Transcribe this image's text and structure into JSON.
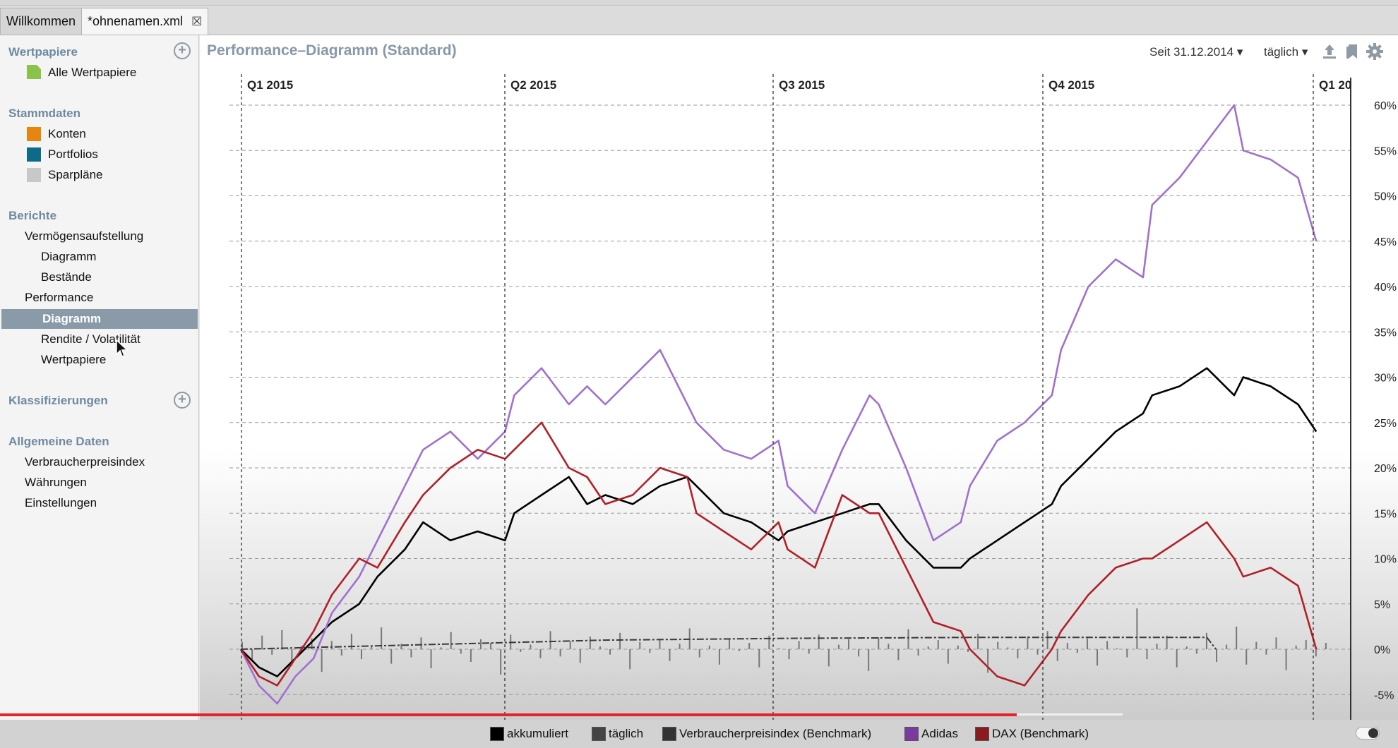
{
  "tabs": [
    {
      "label": "Willkommen"
    },
    {
      "label": "*ohnenamen.xml"
    }
  ],
  "sidebar": {
    "sections": {
      "wertpapiere": {
        "title": "Wertpapiere",
        "items": [
          "Alle Wertpapiere"
        ]
      },
      "stammdaten": {
        "title": "Stammdaten",
        "items": [
          "Konten",
          "Portfolios",
          "Sparpläne"
        ]
      },
      "berichte": {
        "title": "Berichte",
        "items": [
          "Vermögensaufstellung",
          "Diagramm",
          "Bestände",
          "Performance",
          "Diagramm",
          "Rendite / Volatilität",
          "Wertpapiere"
        ]
      },
      "klassifizierungen": {
        "title": "Klassifizierungen"
      },
      "allgemeine": {
        "title": "Allgemeine Daten",
        "items": [
          "Verbraucherpreisindex",
          "Währungen",
          "Einstellungen"
        ]
      }
    },
    "colors": {
      "konten": "#e8850c",
      "portfolios": "#0e6a86",
      "sparplaene": "#c8c8c8",
      "alle": "#8bc34a"
    }
  },
  "header": {
    "title": "Performance–Diagramm (Standard)",
    "since": "Seit 31.12.2014",
    "interval": "täglich"
  },
  "chart_data": {
    "type": "line",
    "x_quarter_labels": [
      "Q1 2015",
      "Q2 2015",
      "Q3 2015",
      "Q4 2015",
      "Q1 20"
    ],
    "y_tick_labels": [
      "60%",
      "55%",
      "50%",
      "45%",
      "40%",
      "35%",
      "30%",
      "25%",
      "20%",
      "15%",
      "10%",
      "5%",
      "0%",
      "-5%"
    ],
    "ylim": [
      -7,
      62
    ],
    "x_months": [
      0,
      12
    ],
    "grid": true,
    "legend_position": "bottom",
    "series": [
      {
        "name": "akkumuliert",
        "color": "#000000",
        "points": [
          [
            0,
            0
          ],
          [
            0.2,
            -2
          ],
          [
            0.4,
            -3
          ],
          [
            0.6,
            -1
          ],
          [
            0.8,
            1
          ],
          [
            1.0,
            3
          ],
          [
            1.3,
            5
          ],
          [
            1.5,
            8
          ],
          [
            1.8,
            11
          ],
          [
            2.0,
            14
          ],
          [
            2.3,
            12
          ],
          [
            2.6,
            13
          ],
          [
            2.9,
            12
          ],
          [
            3.0,
            15
          ],
          [
            3.3,
            17
          ],
          [
            3.6,
            19
          ],
          [
            3.8,
            16
          ],
          [
            4.0,
            17
          ],
          [
            4.3,
            16
          ],
          [
            4.6,
            18
          ],
          [
            4.9,
            19
          ],
          [
            5.0,
            18
          ],
          [
            5.3,
            15
          ],
          [
            5.6,
            14
          ],
          [
            5.9,
            12
          ],
          [
            6.0,
            13
          ],
          [
            6.3,
            14
          ],
          [
            6.6,
            15
          ],
          [
            6.9,
            16
          ],
          [
            7.0,
            16
          ],
          [
            7.3,
            12
          ],
          [
            7.6,
            9
          ],
          [
            7.9,
            9
          ],
          [
            8.0,
            10
          ],
          [
            8.3,
            12
          ],
          [
            8.6,
            14
          ],
          [
            8.9,
            16
          ],
          [
            9.0,
            18
          ],
          [
            9.3,
            21
          ],
          [
            9.6,
            24
          ],
          [
            9.9,
            26
          ],
          [
            10.0,
            28
          ],
          [
            10.3,
            29
          ],
          [
            10.6,
            31
          ],
          [
            10.9,
            28
          ],
          [
            11.0,
            30
          ],
          [
            11.3,
            29
          ],
          [
            11.6,
            27
          ],
          [
            11.8,
            24
          ]
        ]
      },
      {
        "name": "Adidas",
        "color": "#a070d0",
        "points": [
          [
            0,
            0
          ],
          [
            0.2,
            -4
          ],
          [
            0.4,
            -6
          ],
          [
            0.6,
            -3
          ],
          [
            0.8,
            -1
          ],
          [
            1.0,
            4
          ],
          [
            1.3,
            8
          ],
          [
            1.5,
            12
          ],
          [
            1.8,
            18
          ],
          [
            2.0,
            22
          ],
          [
            2.3,
            24
          ],
          [
            2.6,
            21
          ],
          [
            2.9,
            24
          ],
          [
            3.0,
            28
          ],
          [
            3.3,
            31
          ],
          [
            3.6,
            27
          ],
          [
            3.8,
            29
          ],
          [
            4.0,
            27
          ],
          [
            4.3,
            30
          ],
          [
            4.6,
            33
          ],
          [
            4.9,
            27
          ],
          [
            5.0,
            25
          ],
          [
            5.3,
            22
          ],
          [
            5.6,
            21
          ],
          [
            5.9,
            23
          ],
          [
            6.0,
            18
          ],
          [
            6.3,
            15
          ],
          [
            6.6,
            22
          ],
          [
            6.9,
            28
          ],
          [
            7.0,
            27
          ],
          [
            7.3,
            20
          ],
          [
            7.6,
            12
          ],
          [
            7.9,
            14
          ],
          [
            8.0,
            18
          ],
          [
            8.3,
            23
          ],
          [
            8.6,
            25
          ],
          [
            8.9,
            28
          ],
          [
            9.0,
            33
          ],
          [
            9.3,
            40
          ],
          [
            9.6,
            43
          ],
          [
            9.9,
            41
          ],
          [
            10.0,
            49
          ],
          [
            10.3,
            52
          ],
          [
            10.6,
            56
          ],
          [
            10.9,
            60
          ],
          [
            11.0,
            55
          ],
          [
            11.3,
            54
          ],
          [
            11.6,
            52
          ],
          [
            11.8,
            45
          ]
        ]
      },
      {
        "name": "DAX (Benchmark)",
        "color": "#b02028",
        "points": [
          [
            0,
            0
          ],
          [
            0.2,
            -3
          ],
          [
            0.4,
            -4
          ],
          [
            0.6,
            -1
          ],
          [
            0.8,
            2
          ],
          [
            1.0,
            6
          ],
          [
            1.3,
            10
          ],
          [
            1.5,
            9
          ],
          [
            1.8,
            14
          ],
          [
            2.0,
            17
          ],
          [
            2.3,
            20
          ],
          [
            2.6,
            22
          ],
          [
            2.9,
            21
          ],
          [
            3.0,
            22
          ],
          [
            3.3,
            25
          ],
          [
            3.6,
            20
          ],
          [
            3.8,
            19
          ],
          [
            4.0,
            16
          ],
          [
            4.3,
            17
          ],
          [
            4.6,
            20
          ],
          [
            4.9,
            19
          ],
          [
            5.0,
            15
          ],
          [
            5.3,
            13
          ],
          [
            5.6,
            11
          ],
          [
            5.9,
            14
          ],
          [
            6.0,
            11
          ],
          [
            6.3,
            9
          ],
          [
            6.6,
            17
          ],
          [
            6.9,
            15
          ],
          [
            7.0,
            15
          ],
          [
            7.3,
            9
          ],
          [
            7.6,
            3
          ],
          [
            7.9,
            2
          ],
          [
            8.0,
            0
          ],
          [
            8.3,
            -3
          ],
          [
            8.6,
            -4
          ],
          [
            8.9,
            0
          ],
          [
            9.0,
            2
          ],
          [
            9.3,
            6
          ],
          [
            9.6,
            9
          ],
          [
            9.9,
            10
          ],
          [
            10.0,
            10
          ],
          [
            10.3,
            12
          ],
          [
            10.6,
            14
          ],
          [
            10.9,
            10
          ],
          [
            11.0,
            8
          ],
          [
            11.3,
            9
          ],
          [
            11.6,
            7
          ],
          [
            11.8,
            0
          ]
        ]
      },
      {
        "name": "Verbraucherpreisindex (Benchmark)",
        "color": "#3a3a3a",
        "points": [
          [
            0,
            0
          ],
          [
            2,
            0.5
          ],
          [
            4,
            1.0
          ],
          [
            6,
            1.2
          ],
          [
            8,
            1.3
          ],
          [
            10,
            1.3
          ],
          [
            10.6,
            1.3
          ],
          [
            10.7,
            0
          ]
        ]
      }
    ],
    "daily_bars": {
      "name": "täglich",
      "color": "#777777",
      "values": [
        0.8,
        -1.2,
        1.5,
        -0.6,
        2.1,
        -1.8,
        0.4,
        1.2,
        -2.5,
        0.9,
        -0.7,
        1.7,
        -1.1,
        0.3,
        2.4,
        -1.6,
        0.6,
        -0.9,
        1.3,
        -2.1,
        0.2,
        1.9,
        -0.5,
        -1.4,
        1.1,
        0.7,
        -2.8,
        1.6,
        -0.3,
        0.5,
        -1.0,
        2.0,
        -0.8,
        0.9,
        -1.5,
        1.4,
        0.3,
        -0.6,
        1.8,
        -2.2,
        0.8,
        -0.4,
        1.0,
        -1.3,
        0.6,
        2.3,
        -0.9,
        0.4,
        -1.7,
        1.2,
        -0.2,
        0.7,
        -2.0,
        1.5,
        0.1,
        -1.1,
        0.9,
        -0.5,
        1.6,
        -1.9,
        0.5,
        1.1,
        -0.8,
        -2.4,
        1.3,
        0.6,
        -1.2,
        2.2,
        -0.7,
        0.3,
        1.0,
        -1.6,
        0.4,
        -0.3,
        1.7,
        -2.6,
        0.8,
        0.2,
        -1.0,
        1.4,
        -0.6,
        2.0,
        -1.3,
        0.7,
        -0.4,
        1.2,
        -1.8,
        0.9,
        0.1,
        -0.9,
        4.5,
        -1.1,
        0.6,
        1.5,
        -2.0,
        0.3,
        -0.5,
        1.8,
        -1.4,
        0.5,
        2.5,
        -1.7,
        0.8,
        -0.6,
        1.3,
        -2.3,
        0.4,
        1.0,
        -0.8,
        0.7
      ]
    }
  },
  "legend": [
    {
      "label": "akkumuliert",
      "color": "#000000"
    },
    {
      "label": "täglich",
      "color": "#444444"
    },
    {
      "label": "Verbraucherpreisindex (Benchmark)",
      "color": "#333333"
    },
    {
      "label": "Adidas",
      "color": "#7a3aa0"
    },
    {
      "label": "DAX (Benchmark)",
      "color": "#8a1a20"
    }
  ]
}
